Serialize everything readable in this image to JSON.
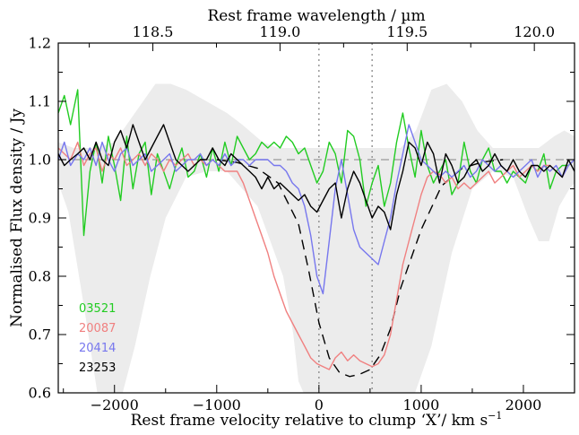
{
  "chart_data": {
    "type": "line",
    "xlabel": "Rest frame velocity relative to clump ‘X’/ km s",
    "xlabel_sup": "−1",
    "ylabel": "Normalised Flux density / Jy",
    "top_xlabel": "Rest frame wavelength / µm",
    "xlim": [
      -2550,
      2500
    ],
    "ylim": [
      0.6,
      1.2
    ],
    "top_xlim": [
      118.128,
      120.158
    ],
    "x_ticks": [
      -2000,
      -1000,
      0,
      1000,
      2000
    ],
    "x_tick_labels": [
      "−2000",
      "−1000",
      "0",
      "1000",
      "2000"
    ],
    "y_ticks": [
      0.6,
      0.7,
      0.8,
      0.9,
      1.0,
      1.1,
      1.2
    ],
    "y_tick_labels": [
      "0.6",
      "0.7",
      "0.8",
      "0.9",
      "1.0",
      "1.1",
      "1.2"
    ],
    "top_ticks": [
      118.5,
      119.0,
      119.5,
      120.0
    ],
    "top_tick_labels": [
      "118.5",
      "119.0",
      "119.5",
      "120.0"
    ],
    "vertical_reference_lines": [
      0,
      520
    ],
    "horizontal_reference_line": 1.0,
    "legend_position": "bottom-left",
    "uncertainty_band": {
      "color": "#ececec",
      "points": [
        [
          -2550,
          0.96
        ],
        [
          -2450,
          0.91
        ],
        [
          -2300,
          0.75
        ],
        [
          -2150,
          0.58
        ],
        [
          -1950,
          0.58
        ],
        [
          -1800,
          0.68
        ],
        [
          -1650,
          0.8
        ],
        [
          -1500,
          0.9
        ],
        [
          -1300,
          0.97
        ],
        [
          -1100,
          0.98
        ],
        [
          -900,
          0.98
        ],
        [
          -600,
          0.92
        ],
        [
          -350,
          0.8
        ],
        [
          -250,
          0.7
        ],
        [
          -200,
          0.62
        ],
        [
          -100,
          0.58
        ],
        [
          300,
          0.58
        ],
        [
          700,
          0.58
        ],
        [
          900,
          0.58
        ],
        [
          1100,
          0.68
        ],
        [
          1300,
          0.84
        ],
        [
          1500,
          0.95
        ],
        [
          1700,
          0.98
        ],
        [
          1900,
          0.97
        ],
        [
          2050,
          0.9
        ],
        [
          2150,
          0.86
        ],
        [
          2250,
          0.86
        ],
        [
          2350,
          0.92
        ],
        [
          2450,
          0.95
        ],
        [
          2500,
          0.96
        ],
        [
          2500,
          1.04
        ],
        [
          2400,
          1.05
        ],
        [
          2300,
          1.04
        ],
        [
          2150,
          1.02
        ],
        [
          2000,
          1.02
        ],
        [
          1850,
          1.02
        ],
        [
          1700,
          1.02
        ],
        [
          1550,
          1.05
        ],
        [
          1400,
          1.1
        ],
        [
          1250,
          1.13
        ],
        [
          1100,
          1.12
        ],
        [
          950,
          1.05
        ],
        [
          800,
          1.02
        ],
        [
          600,
          1.02
        ],
        [
          400,
          1.02
        ],
        [
          200,
          1.02
        ],
        [
          0,
          1.02
        ],
        [
          -200,
          1.02
        ],
        [
          -400,
          1.02
        ],
        [
          -550,
          1.03
        ],
        [
          -750,
          1.06
        ],
        [
          -900,
          1.08
        ],
        [
          -1100,
          1.1
        ],
        [
          -1300,
          1.12
        ],
        [
          -1450,
          1.13
        ],
        [
          -1600,
          1.13
        ],
        [
          -1800,
          1.08
        ],
        [
          -2000,
          1.03
        ],
        [
          -2200,
          1.02
        ],
        [
          -2400,
          1.02
        ],
        [
          -2550,
          1.03
        ]
      ]
    },
    "model": {
      "style": "dashed",
      "color": "#000000",
      "x": [
        -1000,
        -800,
        -600,
        -400,
        -200,
        -100,
        0,
        100,
        200,
        300,
        400,
        500,
        600,
        700,
        800,
        1000,
        1200,
        1400,
        1600,
        1800
      ],
      "y": [
        1.0,
        0.995,
        0.985,
        0.96,
        0.89,
        0.81,
        0.72,
        0.66,
        0.635,
        0.628,
        0.632,
        0.64,
        0.665,
        0.71,
        0.78,
        0.88,
        0.955,
        0.985,
        0.996,
        1.0
      ]
    },
    "legend_entries": [
      "03521",
      "20087",
      "20414",
      "23253"
    ],
    "series": [
      {
        "name": "03521",
        "color": "#22cc22",
        "x": [
          -2550,
          -2490,
          -2430,
          -2360,
          -2300,
          -2240,
          -2180,
          -2120,
          -2060,
          -2000,
          -1940,
          -1880,
          -1820,
          -1760,
          -1700,
          -1640,
          -1580,
          -1520,
          -1460,
          -1400,
          -1340,
          -1280,
          -1220,
          -1160,
          -1100,
          -1040,
          -980,
          -920,
          -860,
          -800,
          -740,
          -680,
          -620,
          -560,
          -500,
          -440,
          -380,
          -320,
          -260,
          -200,
          -140,
          -80,
          -20,
          40,
          100,
          160,
          220,
          280,
          340,
          400,
          460,
          520,
          580,
          640,
          700,
          760,
          820,
          880,
          940,
          1000,
          1060,
          1120,
          1180,
          1240,
          1300,
          1360,
          1420,
          1480,
          1540,
          1600,
          1660,
          1720,
          1780,
          1840,
          1900,
          1960,
          2020,
          2080,
          2140,
          2200,
          2260,
          2320,
          2380,
          2440,
          2500
        ],
        "y": [
          1.08,
          1.11,
          1.06,
          1.12,
          0.87,
          0.98,
          1.03,
          0.96,
          1.04,
          0.99,
          0.93,
          1.04,
          0.95,
          1.01,
          1.03,
          0.94,
          1.01,
          0.98,
          0.95,
          0.99,
          1.02,
          0.97,
          0.98,
          1.01,
          0.97,
          1.02,
          0.98,
          1.03,
          0.99,
          1.04,
          1.02,
          1.0,
          1.01,
          1.03,
          1.02,
          1.03,
          1.02,
          1.04,
          1.03,
          1.01,
          1.02,
          0.99,
          0.96,
          0.98,
          1.03,
          1.01,
          0.96,
          1.05,
          1.04,
          1.0,
          0.92,
          0.96,
          0.99,
          0.92,
          0.96,
          1.03,
          1.08,
          1.02,
          0.97,
          1.05,
          0.99,
          0.96,
          0.98,
          1.0,
          0.94,
          0.96,
          1.03,
          0.98,
          0.96,
          1.0,
          1.02,
          0.98,
          0.98,
          0.96,
          0.98,
          0.97,
          0.96,
          0.99,
          0.98,
          1.01,
          0.95,
          0.98,
          0.99,
          0.99,
          1.0
        ]
      },
      {
        "name": "20087",
        "color": "#f08080",
        "x": [
          -2550,
          -2490,
          -2430,
          -2360,
          -2300,
          -2240,
          -2180,
          -2120,
          -2060,
          -2000,
          -1940,
          -1880,
          -1820,
          -1760,
          -1700,
          -1640,
          -1580,
          -1520,
          -1460,
          -1400,
          -1340,
          -1280,
          -1220,
          -1160,
          -1100,
          -1040,
          -980,
          -920,
          -860,
          -800,
          -740,
          -680,
          -620,
          -560,
          -500,
          -440,
          -380,
          -320,
          -260,
          -200,
          -140,
          -80,
          -20,
          40,
          100,
          160,
          220,
          280,
          340,
          400,
          460,
          520,
          580,
          640,
          700,
          760,
          820,
          880,
          940,
          1000,
          1060,
          1120,
          1180,
          1240,
          1300,
          1360,
          1420,
          1480,
          1540,
          1600,
          1660,
          1720,
          1780,
          1840,
          1900,
          1960,
          2020,
          2080,
          2140,
          2200,
          2260,
          2320,
          2380,
          2440,
          2500
        ],
        "y": [
          1.02,
          1.01,
          1.0,
          1.03,
          0.99,
          1.01,
          1.02,
          0.98,
          1.01,
          1.0,
          1.02,
          0.99,
          1.0,
          1.01,
          0.99,
          1.01,
          1.0,
          0.98,
          1.0,
          0.99,
          1.0,
          1.01,
          0.99,
          1.0,
          0.99,
          1.0,
          0.99,
          0.98,
          0.98,
          0.98,
          0.96,
          0.93,
          0.9,
          0.87,
          0.84,
          0.8,
          0.77,
          0.74,
          0.72,
          0.7,
          0.68,
          0.66,
          0.65,
          0.645,
          0.64,
          0.66,
          0.67,
          0.655,
          0.665,
          0.655,
          0.65,
          0.645,
          0.65,
          0.665,
          0.7,
          0.76,
          0.82,
          0.86,
          0.9,
          0.94,
          0.97,
          0.98,
          0.975,
          0.96,
          0.97,
          0.95,
          0.96,
          0.95,
          0.96,
          0.97,
          0.98,
          0.96,
          0.97,
          0.98,
          0.99,
          0.97,
          0.98,
          0.99,
          0.98,
          0.99,
          0.99,
          0.98,
          0.97,
          0.99,
          1.0
        ]
      },
      {
        "name": "20414",
        "color": "#7777ee",
        "x": [
          -2550,
          -2490,
          -2430,
          -2360,
          -2300,
          -2240,
          -2180,
          -2120,
          -2060,
          -2000,
          -1940,
          -1880,
          -1820,
          -1760,
          -1700,
          -1640,
          -1580,
          -1520,
          -1460,
          -1400,
          -1340,
          -1280,
          -1220,
          -1160,
          -1100,
          -1040,
          -980,
          -920,
          -860,
          -800,
          -740,
          -680,
          -620,
          -560,
          -500,
          -440,
          -380,
          -320,
          -260,
          -200,
          -140,
          -80,
          -20,
          40,
          100,
          160,
          220,
          280,
          340,
          400,
          460,
          520,
          580,
          640,
          700,
          760,
          820,
          880,
          940,
          1000,
          1060,
          1120,
          1180,
          1240,
          1300,
          1360,
          1420,
          1480,
          1540,
          1600,
          1660,
          1720,
          1780,
          1840,
          1900,
          1960,
          2020,
          2080,
          2140,
          2200,
          2260,
          2320,
          2380,
          2440,
          2500
        ],
        "y": [
          1.0,
          1.03,
          0.99,
          1.01,
          1.0,
          1.02,
          0.99,
          1.03,
          1.0,
          0.98,
          1.01,
          1.02,
          0.99,
          1.0,
          1.01,
          0.98,
          0.99,
          1.0,
          1.01,
          0.98,
          0.99,
          1.0,
          1.0,
          1.01,
          0.99,
          1.0,
          0.99,
          1.01,
          0.99,
          1.0,
          1.0,
          0.99,
          1.0,
          1.0,
          1.0,
          0.99,
          0.99,
          0.98,
          0.96,
          0.95,
          0.92,
          0.87,
          0.8,
          0.77,
          0.86,
          0.95,
          1.0,
          0.94,
          0.88,
          0.85,
          0.84,
          0.83,
          0.82,
          0.86,
          0.9,
          0.96,
          1.01,
          1.06,
          1.03,
          1.0,
          0.99,
          0.98,
          0.97,
          0.98,
          0.97,
          0.98,
          0.99,
          0.97,
          0.98,
          1.0,
          0.99,
          0.98,
          0.99,
          0.98,
          0.97,
          0.98,
          0.99,
          1.0,
          0.97,
          0.99,
          0.98,
          0.99,
          0.97,
          0.99,
          1.0
        ]
      },
      {
        "name": "23253",
        "color": "#000000",
        "x": [
          -2550,
          -2490,
          -2430,
          -2360,
          -2300,
          -2240,
          -2180,
          -2120,
          -2060,
          -2000,
          -1940,
          -1880,
          -1820,
          -1760,
          -1700,
          -1640,
          -1580,
          -1520,
          -1460,
          -1400,
          -1340,
          -1280,
          -1220,
          -1160,
          -1100,
          -1040,
          -980,
          -920,
          -860,
          -800,
          -740,
          -680,
          -620,
          -560,
          -500,
          -440,
          -380,
          -320,
          -260,
          -200,
          -140,
          -80,
          -20,
          40,
          100,
          160,
          220,
          280,
          340,
          400,
          460,
          520,
          580,
          640,
          700,
          760,
          820,
          880,
          940,
          1000,
          1060,
          1120,
          1180,
          1240,
          1300,
          1360,
          1420,
          1480,
          1540,
          1600,
          1660,
          1720,
          1780,
          1840,
          1900,
          1960,
          2020,
          2080,
          2140,
          2200,
          2260,
          2320,
          2380,
          2440,
          2500
        ],
        "y": [
          1.01,
          0.99,
          1.0,
          1.01,
          1.02,
          1.0,
          1.03,
          1.0,
          0.99,
          1.03,
          1.05,
          1.02,
          1.06,
          1.03,
          1.0,
          1.02,
          1.04,
          1.06,
          1.03,
          1.0,
          0.99,
          0.98,
          0.99,
          1.0,
          1.0,
          1.02,
          1.0,
          0.99,
          1.01,
          1.0,
          0.99,
          0.98,
          0.97,
          0.95,
          0.97,
          0.95,
          0.96,
          0.95,
          0.94,
          0.93,
          0.94,
          0.92,
          0.91,
          0.93,
          0.95,
          0.96,
          0.9,
          0.95,
          0.98,
          0.96,
          0.93,
          0.9,
          0.92,
          0.91,
          0.88,
          0.94,
          0.98,
          1.03,
          1.02,
          0.99,
          1.03,
          1.01,
          0.96,
          1.01,
          0.99,
          0.96,
          0.97,
          0.99,
          1.0,
          0.98,
          0.99,
          1.01,
          0.99,
          0.98,
          1.0,
          0.98,
          0.97,
          0.99,
          0.99,
          0.98,
          0.99,
          0.98,
          0.97,
          1.0,
          0.98
        ]
      }
    ]
  }
}
